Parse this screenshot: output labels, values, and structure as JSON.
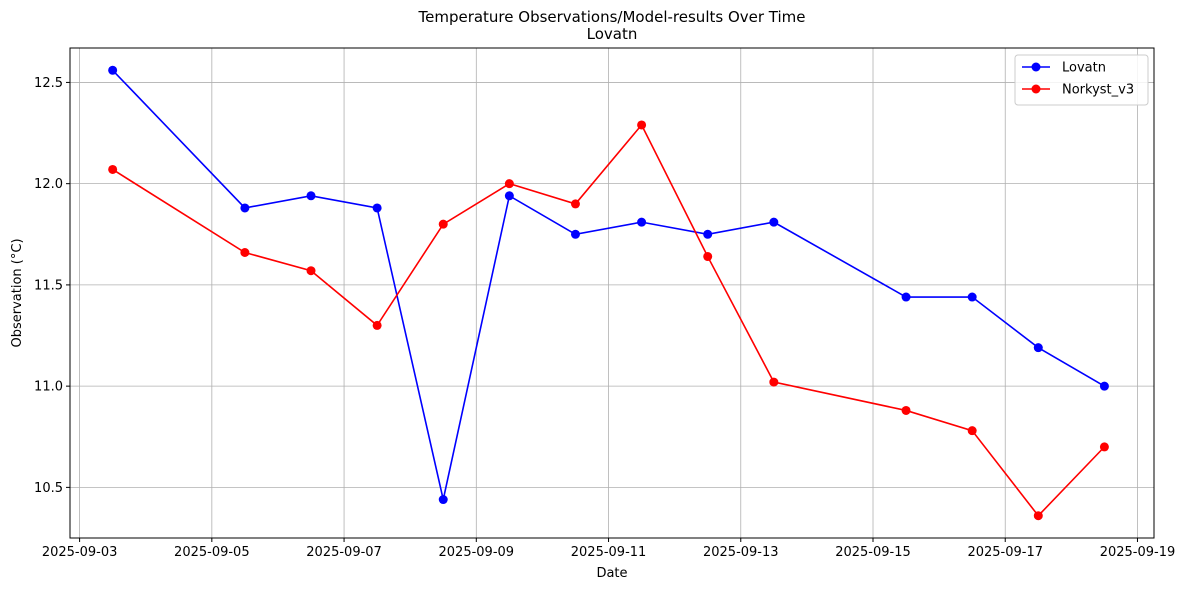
{
  "chart_data": {
    "type": "line",
    "title": "Temperature Observations/Model-results Over Time",
    "subtitle": "Lovatn",
    "xlabel": "Date",
    "ylabel": "Observation (°C)",
    "x_ticks": [
      "2025-09-03",
      "2025-09-05",
      "2025-09-07",
      "2025-09-09",
      "2025-09-11",
      "2025-09-13",
      "2025-09-15",
      "2025-09-17",
      "2025-09-19"
    ],
    "y_ticks": [
      "10.5",
      "11.0",
      "11.5",
      "12.0",
      "12.5"
    ],
    "xlim": [
      "2025-09-02T20:31",
      "2025-09-19T06:00"
    ],
    "ylim": [
      10.25,
      12.67
    ],
    "grid": true,
    "legend_position": "top-right",
    "x": [
      "2025-09-03T12:00",
      "2025-09-05T12:00",
      "2025-09-06T12:00",
      "2025-09-07T12:00",
      "2025-09-08T12:00",
      "2025-09-09T12:00",
      "2025-09-10T12:00",
      "2025-09-11T12:00",
      "2025-09-12T12:00",
      "2025-09-13T12:00",
      "2025-09-15T12:00",
      "2025-09-16T12:00",
      "2025-09-17T12:00",
      "2025-09-18T12:00"
    ],
    "series": [
      {
        "name": "Lovatn",
        "color": "#0000ff",
        "values": [
          12.56,
          11.88,
          11.94,
          11.88,
          10.44,
          11.94,
          11.75,
          11.81,
          11.75,
          11.81,
          11.44,
          11.44,
          11.19,
          11.0
        ]
      },
      {
        "name": "Norkyst_v3",
        "color": "#ff0000",
        "values": [
          12.07,
          11.66,
          11.57,
          11.3,
          11.8,
          12.0,
          11.9,
          12.29,
          11.64,
          11.02,
          10.88,
          10.78,
          10.36,
          10.7
        ]
      }
    ]
  }
}
